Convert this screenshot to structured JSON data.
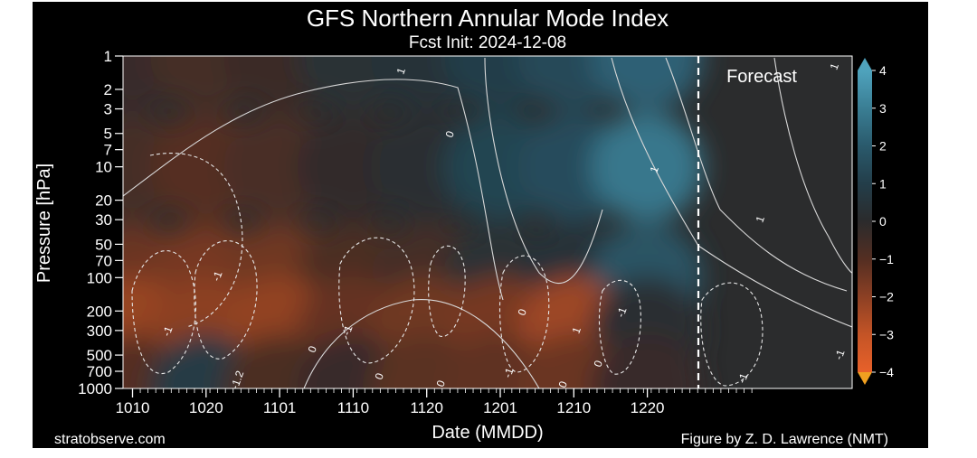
{
  "chart_data": {
    "type": "heatmap",
    "title": "GFS Northern Annular Mode Index",
    "subtitle": "Fcst Init: 2024-12-08",
    "xlabel": "Date (MMDD)",
    "ylabel": "Pressure [hPa]",
    "x_tick_labels": [
      "1010",
      "1020",
      "1101",
      "1110",
      "1120",
      "1201",
      "1210",
      "1220"
    ],
    "y_tick_labels": [
      "1",
      "2",
      "3",
      "5",
      "7",
      "10",
      "20",
      "30",
      "50",
      "70",
      "100",
      "200",
      "300",
      "500",
      "700",
      "1000"
    ],
    "y_scale": "log (inverted)",
    "colorbar": {
      "ticks": [
        4,
        3,
        2,
        1,
        0,
        -1,
        -2,
        -3,
        -4
      ],
      "tick_labels": [
        "4",
        "3",
        "2",
        "1",
        "0",
        "−1",
        "−2",
        "−3",
        "−4"
      ],
      "range": [
        -4,
        4
      ],
      "extend": "both",
      "positive_color": "#4fa3bd",
      "negative_color": "#e8612a",
      "neutral_color": "#2b2b2b"
    },
    "forecast_label": "Forecast",
    "forecast_start_tick": "1208",
    "contour_labels": [
      "1",
      "0",
      "1",
      "1",
      "1",
      "-1",
      "-1",
      "-1",
      "0",
      "0",
      "0",
      "-1",
      "1",
      "0",
      "-1",
      "-1",
      "-1",
      "0",
      "-1.2",
      "0"
    ],
    "samples": {
      "columns": [
        "1010",
        "1020",
        "1101",
        "1110",
        "1120",
        "1201",
        "1210",
        "1220"
      ],
      "rows_hPa": [
        1,
        10,
        100,
        300,
        1000
      ],
      "values": [
        [
          -0.3,
          -0.6,
          -0.4,
          0.3,
          0.4,
          1.0,
          1.4,
          2.2
        ],
        [
          -0.6,
          -1.0,
          -0.7,
          -0.2,
          0.2,
          1.2,
          1.5,
          2.8
        ],
        [
          -1.4,
          -1.6,
          -1.5,
          -0.8,
          -0.6,
          0.3,
          0.4,
          1.8
        ],
        [
          -2.2,
          -2.0,
          -2.1,
          -1.3,
          -1.5,
          -1.6,
          -2.3,
          0.2
        ],
        [
          -1.0,
          0.8,
          -0.8,
          -0.3,
          -1.1,
          -1.2,
          -1.4,
          -0.3
        ]
      ]
    }
  },
  "footer": {
    "source": "stratobserve.com",
    "credit": "Figure by Z. D. Lawrence (NMT)"
  }
}
